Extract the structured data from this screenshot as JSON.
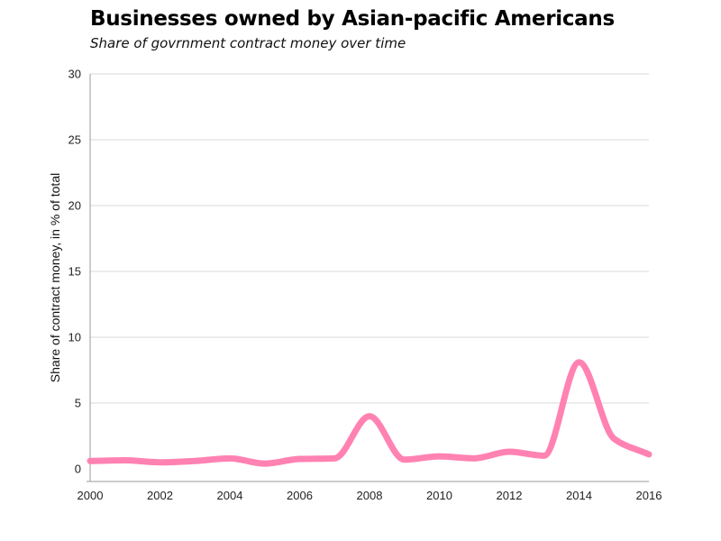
{
  "header": {
    "title": "Businesses owned by Asian-pacific Americans",
    "subtitle": "Share of govrnment contract money over time"
  },
  "chart_data": {
    "type": "line",
    "title": "Businesses owned by Asian-pacific Americans",
    "subtitle": "Share of govrnment contract money over time",
    "xlabel": "",
    "ylabel": "Share of contract money, in % of total",
    "xlim": [
      2000,
      2016
    ],
    "ylim": [
      0,
      30
    ],
    "x_ticks": [
      2000,
      2002,
      2004,
      2006,
      2008,
      2010,
      2012,
      2014,
      2016
    ],
    "y_ticks": [
      0,
      5,
      10,
      15,
      20,
      25,
      30
    ],
    "grid": true,
    "legend": "none",
    "line_color": "#ff82b2",
    "series": [
      {
        "x": [
          2000,
          2001,
          2002,
          2003,
          2004,
          2005,
          2006,
          2007,
          2008,
          2009,
          2010,
          2011,
          2012,
          2013,
          2014,
          2015,
          2016
        ],
        "values": [
          0.6,
          0.65,
          0.5,
          0.6,
          0.8,
          0.4,
          0.75,
          0.8,
          4.0,
          0.7,
          0.95,
          0.8,
          1.3,
          1.0,
          8.1,
          2.3,
          1.1
        ]
      }
    ]
  }
}
